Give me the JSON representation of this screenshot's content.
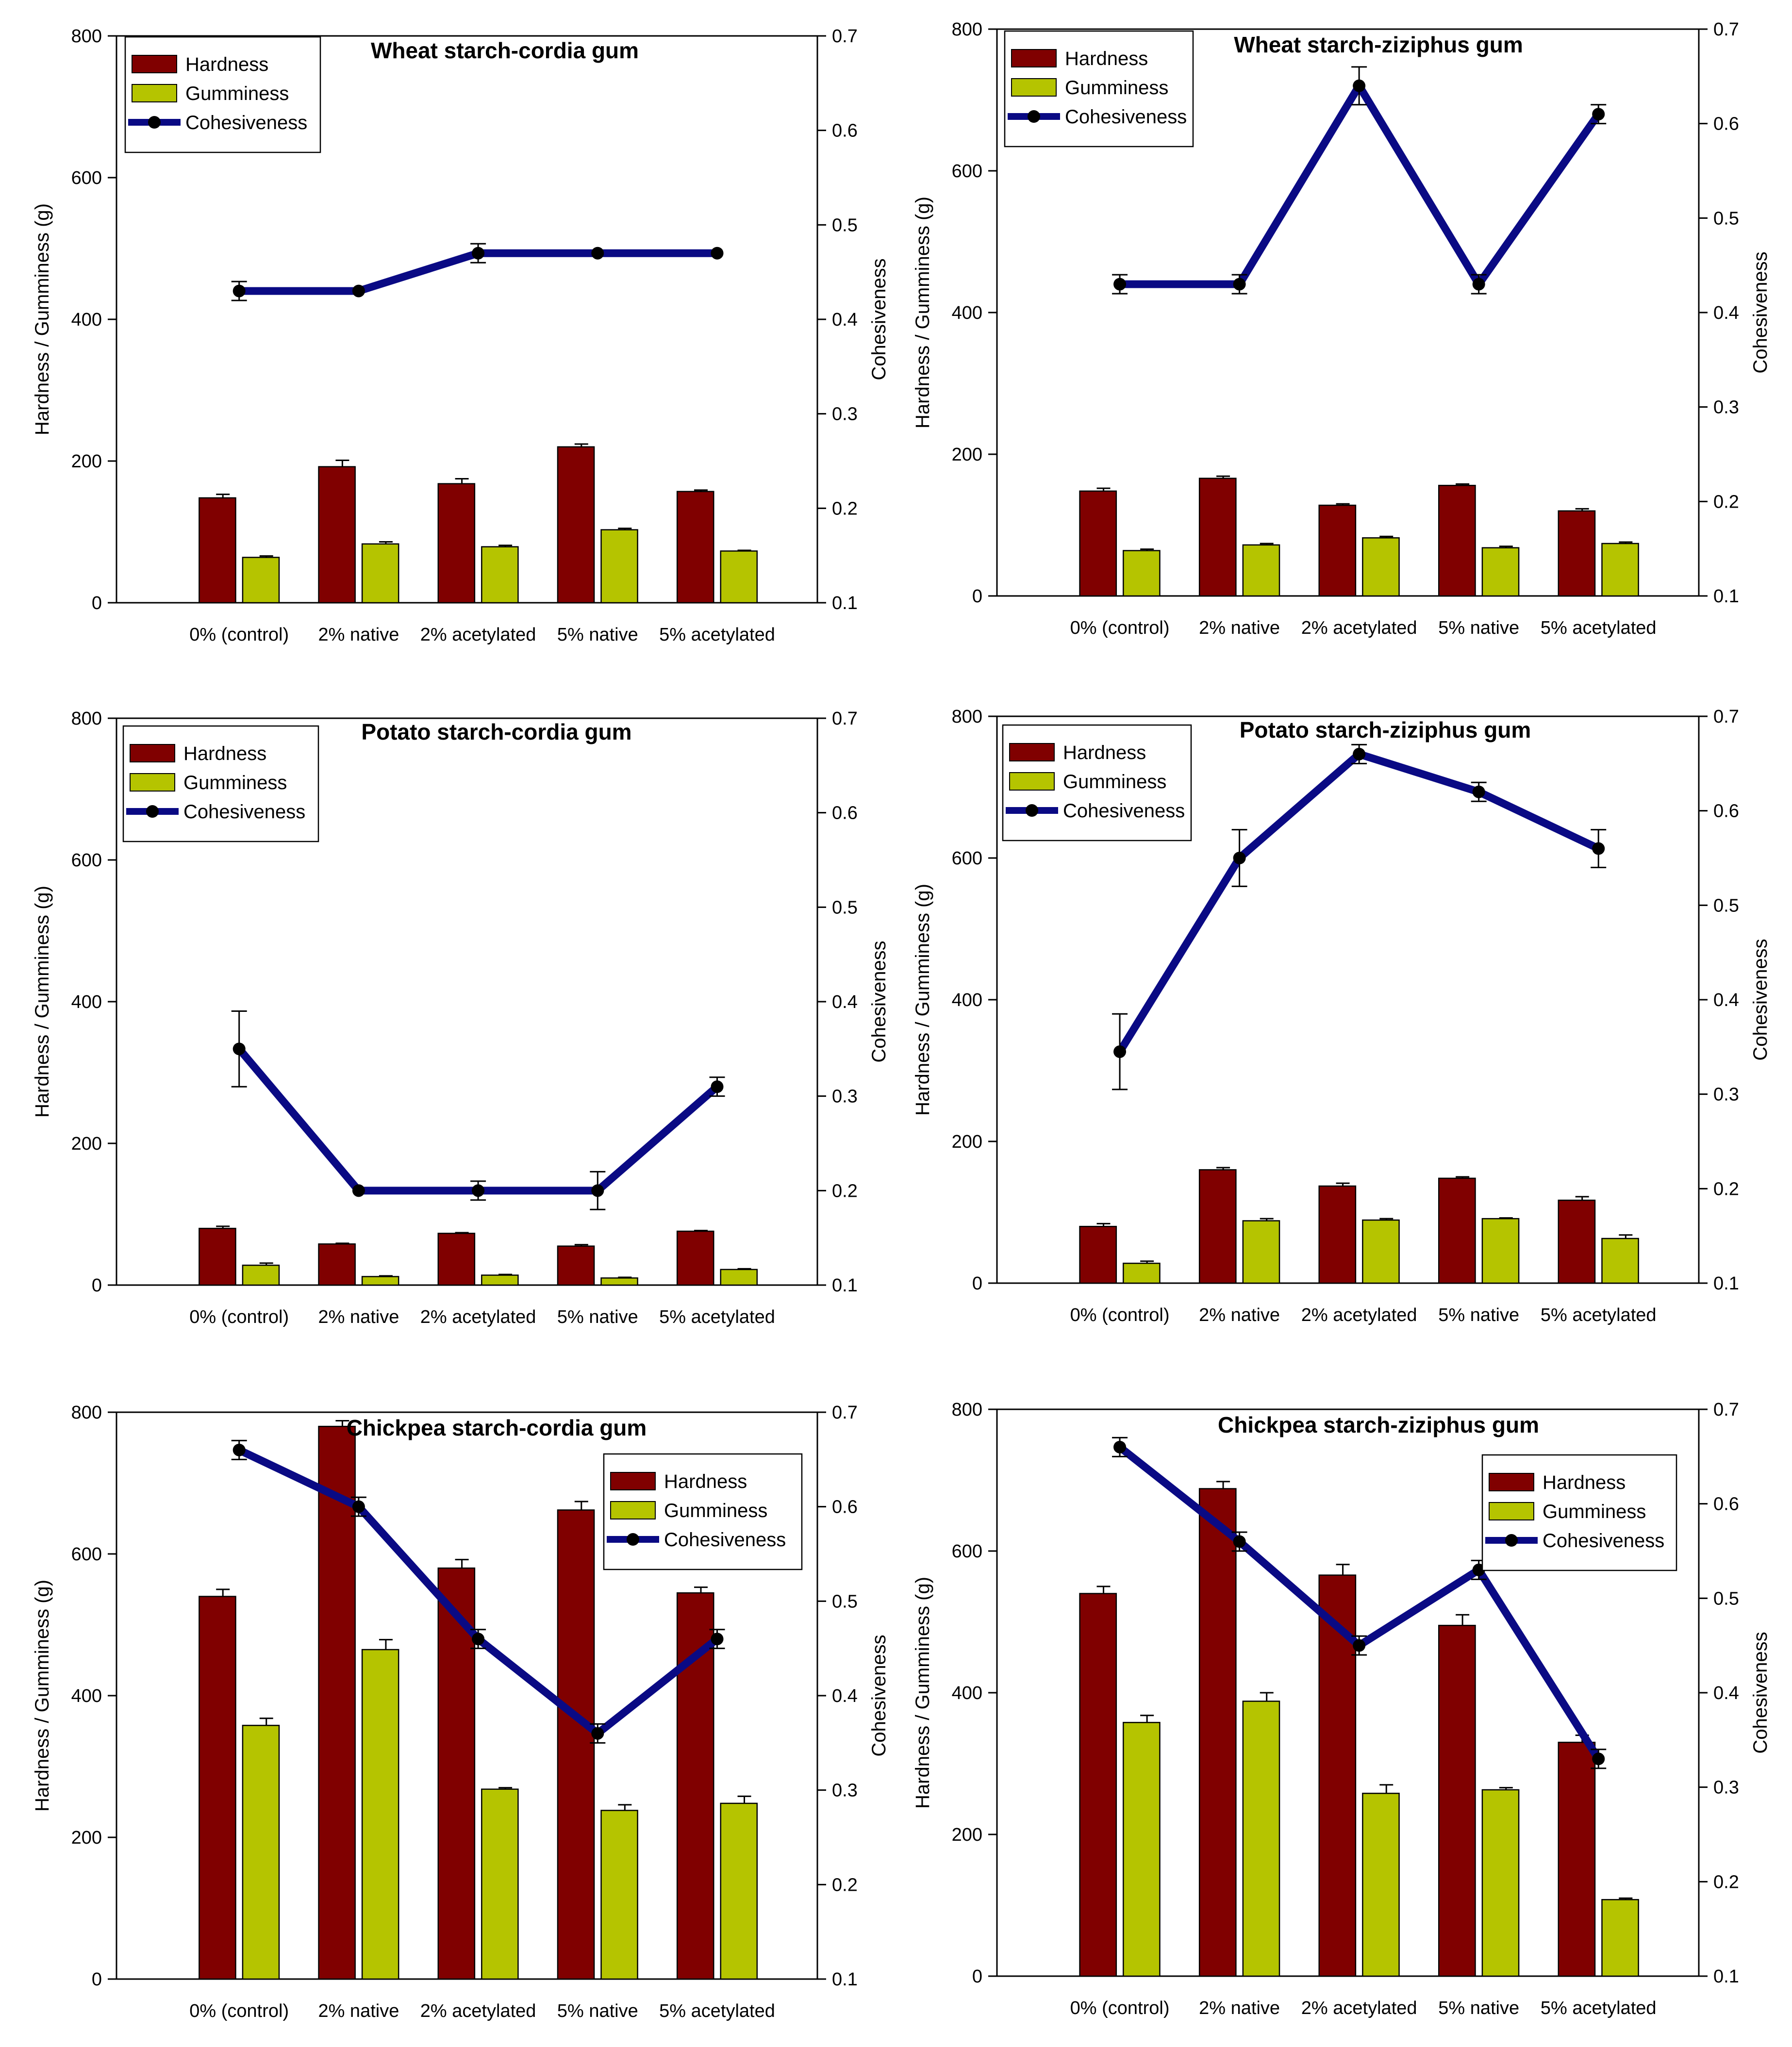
{
  "colors": {
    "hardness": "#800000",
    "gumminess": "#b5c400",
    "cohesiveness": "#0a0a84",
    "marker": "#000000"
  },
  "chart_data": [
    {
      "type": "bar",
      "title": "Wheat starch-cordia gum",
      "categories": [
        "0% (control)",
        "2% native",
        "2% acetylated",
        "5% native",
        "5% acetylated"
      ],
      "ylabel": "Hardness / Gumminess (g)",
      "y2label": "Cohesiveness",
      "ylim": [
        0,
        800
      ],
      "y2lim": [
        0.1,
        0.7
      ],
      "yticks": [
        "0",
        "200",
        "400",
        "600",
        "800"
      ],
      "y2ticks": [
        "0.1",
        "0.2",
        "0.3",
        "0.4",
        "0.5",
        "0.6",
        "0.7"
      ],
      "legend_position": "top-left",
      "legend": [
        "Hardness",
        "Gumminess",
        "Cohesiveness"
      ],
      "series": [
        {
          "name": "Hardness",
          "values": [
            148,
            192,
            168,
            220,
            157
          ],
          "errors": [
            5,
            9,
            7,
            4,
            2
          ]
        },
        {
          "name": "Gumminess",
          "values": [
            64,
            83,
            79,
            103,
            73
          ],
          "errors": [
            2,
            3,
            2,
            2,
            1
          ]
        },
        {
          "name": "Cohesiveness",
          "values": [
            0.43,
            0.43,
            0.47,
            0.47,
            0.47
          ],
          "errors": [
            0.01,
            0,
            0.01,
            0,
            0
          ]
        }
      ]
    },
    {
      "type": "bar",
      "title": "Wheat starch-ziziphus gum",
      "categories": [
        "0% (control)",
        "2% native",
        "2% acetylated",
        "5% native",
        "5% acetylated"
      ],
      "ylabel": "Hardness / Gumminess (g)",
      "y2label": "Cohesiveness",
      "ylim": [
        0,
        800
      ],
      "y2lim": [
        0.1,
        0.7
      ],
      "yticks": [
        "0",
        "200",
        "400",
        "600",
        "800"
      ],
      "y2ticks": [
        "0.1",
        "0.2",
        "0.3",
        "0.4",
        "0.5",
        "0.6",
        "0.7"
      ],
      "legend_position": "top-left",
      "legend": [
        "Hardness",
        "Gumminess",
        "Cohesiveness"
      ],
      "series": [
        {
          "name": "Hardness",
          "values": [
            148,
            166,
            128,
            156,
            120
          ],
          "errors": [
            4,
            3,
            2,
            2,
            3
          ]
        },
        {
          "name": "Gumminess",
          "values": [
            64,
            72,
            82,
            68,
            74
          ],
          "errors": [
            2,
            2,
            2,
            2,
            2
          ]
        },
        {
          "name": "Cohesiveness",
          "values": [
            0.43,
            0.43,
            0.64,
            0.43,
            0.61
          ],
          "errors": [
            0.01,
            0.01,
            0.02,
            0.01,
            0.01
          ]
        }
      ]
    },
    {
      "type": "bar",
      "title": "Potato starch-cordia gum",
      "categories": [
        "0% (control)",
        "2% native",
        "2% acetylated",
        "5% native",
        "5% acetylated"
      ],
      "ylabel": "Hardness / Gumminess (g)",
      "y2label": "Cohesiveness",
      "ylim": [
        0,
        800
      ],
      "y2lim": [
        0.1,
        0.7
      ],
      "yticks": [
        "0",
        "200",
        "400",
        "600",
        "800"
      ],
      "y2ticks": [
        "0.1",
        "0.2",
        "0.3",
        "0.4",
        "0.5",
        "0.6",
        "0.7"
      ],
      "legend_position": "top-left",
      "legend": [
        "Hardness",
        "Gumminess",
        "Cohesiveness"
      ],
      "series": [
        {
          "name": "Hardness",
          "values": [
            80,
            58,
            73,
            55,
            76
          ],
          "errors": [
            3,
            1,
            1,
            2,
            1
          ]
        },
        {
          "name": "Gumminess",
          "values": [
            28,
            12,
            14,
            10,
            22
          ],
          "errors": [
            3,
            1,
            1,
            1,
            1
          ]
        },
        {
          "name": "Cohesiveness",
          "values": [
            0.35,
            0.2,
            0.2,
            0.2,
            0.31
          ],
          "errors": [
            0.04,
            0,
            0.01,
            0.02,
            0.01
          ]
        }
      ]
    },
    {
      "type": "bar",
      "title": "Potato starch-ziziphus gum",
      "categories": [
        "0% (control)",
        "2% native",
        "2% acetylated",
        "5% native",
        "5% acetylated"
      ],
      "ylabel": "Hardness / Gumminess (g)",
      "y2label": "Cohesiveness",
      "ylim": [
        0,
        800
      ],
      "y2lim": [
        0.1,
        0.7
      ],
      "yticks": [
        "0",
        "200",
        "400",
        "600",
        "800"
      ],
      "y2ticks": [
        "0.1",
        "0.2",
        "0.3",
        "0.4",
        "0.5",
        "0.6",
        "0.7"
      ],
      "legend_position": "top-left",
      "legend": [
        "Hardness",
        "Gumminess",
        "Cohesiveness"
      ],
      "series": [
        {
          "name": "Hardness",
          "values": [
            80,
            160,
            137,
            148,
            117
          ],
          "errors": [
            4,
            3,
            4,
            2,
            5
          ]
        },
        {
          "name": "Gumminess",
          "values": [
            28,
            88,
            89,
            91,
            63
          ],
          "errors": [
            3,
            3,
            2,
            1,
            5
          ]
        },
        {
          "name": "Cohesiveness",
          "values": [
            0.345,
            0.55,
            0.66,
            0.62,
            0.56
          ],
          "errors": [
            0.04,
            0.03,
            0.01,
            0.01,
            0.02
          ]
        }
      ]
    },
    {
      "type": "bar",
      "title": "Chickpea starch-cordia gum",
      "categories": [
        "0% (control)",
        "2% native",
        "2% acetylated",
        "5% native",
        "5% acetylated"
      ],
      "ylabel": "Hardness / Gumminess (g)",
      "y2label": "Cohesiveness",
      "ylim": [
        0,
        800
      ],
      "y2lim": [
        0.1,
        0.7
      ],
      "yticks": [
        "0",
        "200",
        "400",
        "600",
        "800"
      ],
      "y2ticks": [
        "0.1",
        "0.2",
        "0.3",
        "0.4",
        "0.5",
        "0.6",
        "0.7"
      ],
      "legend_position": "top-right",
      "legend": [
        "Hardness",
        "Gumminess",
        "Cohesiveness"
      ],
      "series": [
        {
          "name": "Hardness",
          "values": [
            540,
            780,
            580,
            662,
            545
          ],
          "errors": [
            10,
            8,
            12,
            12,
            8
          ]
        },
        {
          "name": "Gumminess",
          "values": [
            358,
            465,
            268,
            238,
            248
          ],
          "errors": [
            10,
            14,
            2,
            8,
            10
          ]
        },
        {
          "name": "Cohesiveness",
          "values": [
            0.66,
            0.6,
            0.46,
            0.36,
            0.46
          ],
          "errors": [
            0.01,
            0.01,
            0.01,
            0.01,
            0.01
          ]
        }
      ]
    },
    {
      "type": "bar",
      "title": "Chickpea starch-ziziphus gum",
      "categories": [
        "0% (control)",
        "2% native",
        "2% acetylated",
        "5% native",
        "5% acetylated"
      ],
      "ylabel": "Hardness / Gumminess (g)",
      "y2label": "Cohesiveness",
      "ylim": [
        0,
        800
      ],
      "y2lim": [
        0.1,
        0.7
      ],
      "yticks": [
        "0",
        "200",
        "400",
        "600",
        "800"
      ],
      "y2ticks": [
        "0.1",
        "0.2",
        "0.3",
        "0.4",
        "0.5",
        "0.6",
        "0.7"
      ],
      "legend_position": "top-right",
      "legend": [
        "Hardness",
        "Gumminess",
        "Cohesiveness"
      ],
      "series": [
        {
          "name": "Hardness",
          "values": [
            540,
            688,
            566,
            495,
            330
          ],
          "errors": [
            10,
            10,
            15,
            15,
            10
          ]
        },
        {
          "name": "Gumminess",
          "values": [
            358,
            388,
            258,
            263,
            108
          ],
          "errors": [
            10,
            12,
            12,
            3,
            2
          ]
        },
        {
          "name": "Cohesiveness",
          "values": [
            0.66,
            0.56,
            0.45,
            0.53,
            0.33
          ],
          "errors": [
            0.01,
            0.01,
            0.01,
            0.01,
            0.01
          ]
        }
      ]
    }
  ]
}
